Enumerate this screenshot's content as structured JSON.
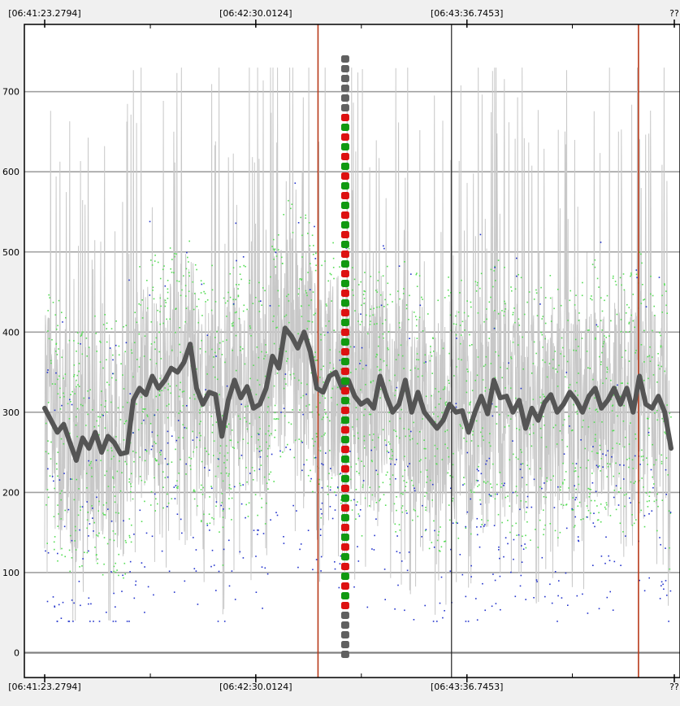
{
  "chart_data": {
    "type": "scatter",
    "title": "",
    "xlabel": "",
    "ylabel": "",
    "ylim": [
      -30,
      760
    ],
    "y_ticks": [
      "0",
      "100",
      "200",
      "300",
      "400",
      "500",
      "600",
      "700"
    ],
    "x_range_seconds": [
      0,
      295
    ],
    "x_ticks": [
      {
        "t": 0,
        "label": "[06:41:23.2794]"
      },
      {
        "t": 66.73,
        "label": "[06:42:30.0124]"
      },
      {
        "t": 133.47,
        "label": "[06:43:36.7453]"
      },
      {
        "t": 295,
        "label": "??"
      }
    ],
    "grid": true,
    "colors": {
      "plot_bg": "#ffffff",
      "spike": "#c8c8c8",
      "moving_average": "#555555",
      "green_points": "#55dd55",
      "blue_points": "#2233cc",
      "red_markers": "#b83a1a",
      "vertical_cursor": "#222222",
      "dash_gray": "#606060",
      "dash_red": "#dd1111",
      "dash_green": "#119911"
    },
    "red_markers_at_seconds": [
      86.4,
      187.7
    ],
    "black_cursor_at_seconds": [
      128.6
    ],
    "dashed_marker_at_seconds": 95.0,
    "moving_average": {
      "x": [
        0,
        2,
        4,
        6,
        8,
        10,
        12,
        14,
        16,
        18,
        20,
        22,
        24,
        26,
        28,
        30,
        32,
        34,
        36,
        38,
        40,
        42,
        44,
        46,
        48,
        50,
        52,
        54,
        56,
        58,
        60,
        62,
        64,
        66,
        68,
        70,
        72,
        74,
        76,
        78,
        80,
        82,
        84,
        86,
        88,
        90,
        92,
        94,
        96,
        98,
        100,
        102,
        104,
        106,
        108,
        110,
        112,
        114,
        116,
        118,
        120,
        122,
        124,
        126,
        128,
        130,
        132,
        134,
        136,
        138,
        140,
        142,
        144,
        146,
        148,
        150,
        152,
        154,
        156,
        158,
        160,
        162,
        164,
        166,
        168,
        170,
        172,
        174,
        176,
        178,
        180,
        182,
        184,
        186,
        188,
        190,
        192,
        194,
        196,
        198
      ],
      "y": [
        305,
        290,
        275,
        285,
        262,
        240,
        268,
        255,
        275,
        250,
        270,
        262,
        248,
        250,
        315,
        330,
        322,
        345,
        330,
        340,
        355,
        350,
        362,
        385,
        330,
        310,
        325,
        322,
        270,
        315,
        340,
        318,
        332,
        305,
        310,
        330,
        370,
        355,
        405,
        395,
        380,
        400,
        375,
        330,
        325,
        345,
        350,
        330,
        340,
        320,
        310,
        315,
        305,
        345,
        320,
        300,
        310,
        340,
        300,
        325,
        300,
        290,
        280,
        290,
        310,
        300,
        302,
        275,
        300,
        320,
        298,
        340,
        318,
        320,
        300,
        315,
        280,
        305,
        290,
        312,
        322,
        300,
        310,
        325,
        315,
        300,
        320,
        330,
        305,
        315,
        330,
        310,
        330,
        300,
        345,
        310,
        305,
        320,
        300,
        255
      ]
    }
  }
}
